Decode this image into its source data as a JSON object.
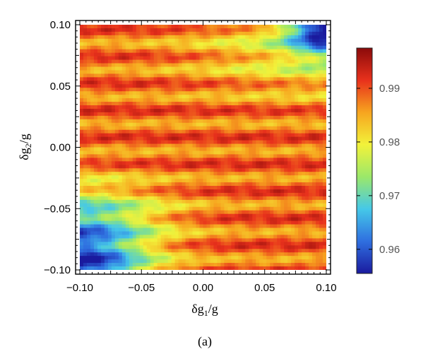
{
  "chart_data": {
    "type": "heatmap",
    "title": "",
    "panel_label": "(a)",
    "xlabel": {
      "prefix": "δg",
      "sub": "1",
      "suffix": "/g"
    },
    "ylabel": {
      "prefix": "δg",
      "sub": "2",
      "suffix": "/g"
    },
    "xlim": [
      -0.1,
      0.1
    ],
    "ylim": [
      -0.1,
      0.1
    ],
    "x_ticks": [
      -0.1,
      -0.05,
      0.0,
      0.05,
      0.1
    ],
    "x_tick_labels": [
      "−0.10",
      "−0.05",
      "0.00",
      "0.05",
      "0.10"
    ],
    "y_ticks": [
      -0.1,
      -0.05,
      0.0,
      0.05,
      0.1
    ],
    "y_tick_labels": [
      "−0.10",
      "−0.05",
      "0.00",
      "0.05",
      "0.10"
    ],
    "colorbar": {
      "range": [
        0.9555,
        0.9975
      ],
      "ticks": [
        0.96,
        0.97,
        0.98,
        0.99
      ],
      "tick_labels": [
        "0.96",
        "0.97",
        "0.98",
        "0.99"
      ],
      "colormap": [
        "#1a1a9e",
        "#2f6fe0",
        "#45c8e8",
        "#9be86a",
        "#f2f23a",
        "#f7a51f",
        "#e8311c",
        "#8b0a0a"
      ]
    },
    "grid": false,
    "description_of_values": "Value field over (δg1/g, δg2/g): ~0.99 near horizontal stripes around δg2≈0.01, 0.03, 0.07; drops toward ~0.96 at the bottom-left corner and ~0.965 at the top-right corner; oscillatory ripple pattern throughout."
  }
}
